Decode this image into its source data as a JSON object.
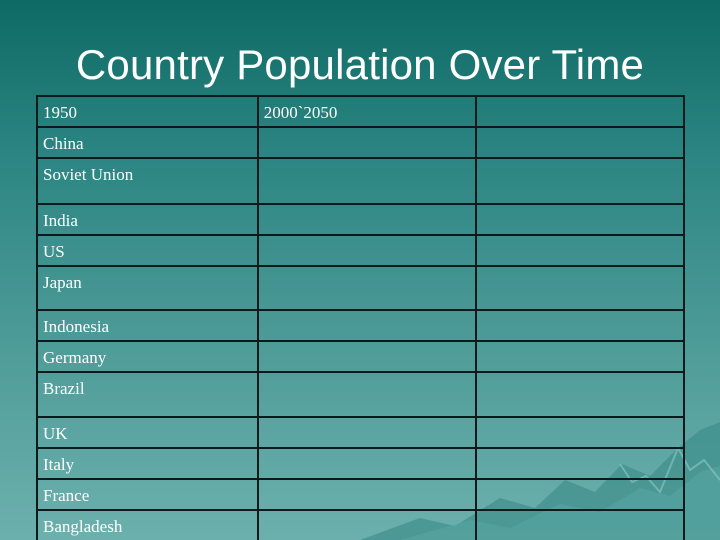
{
  "slide": {
    "title": "Country Population Over Time"
  },
  "table": {
    "headers": [
      "1950",
      "2000`2050",
      ""
    ],
    "rows": [
      {
        "country": "China",
        "y2000": "",
        "y2050": ""
      },
      {
        "country": "Soviet Union",
        "y2000": "",
        "y2050": ""
      },
      {
        "country": "India",
        "y2000": "",
        "y2050": ""
      },
      {
        "country": "US",
        "y2000": "",
        "y2050": ""
      },
      {
        "country": "Japan",
        "y2000": "",
        "y2050": ""
      },
      {
        "country": "Indonesia",
        "y2000": "",
        "y2050": ""
      },
      {
        "country": "Germany",
        "y2000": "",
        "y2050": ""
      },
      {
        "country": "Brazil",
        "y2000": "",
        "y2050": ""
      },
      {
        "country": "UK",
        "y2000": "",
        "y2050": ""
      },
      {
        "country": "Italy",
        "y2000": "",
        "y2050": ""
      },
      {
        "country": "France",
        "y2000": "",
        "y2050": ""
      },
      {
        "country": "Bangladesh",
        "y2000": "",
        "y2050": ""
      }
    ]
  },
  "theme": {
    "background_top": "#0e6a65",
    "background_bottom": "#6cb0ad",
    "text_color": "#ffffff",
    "border_color": "#0b1a1a",
    "decoration": "mountain-range-icon"
  }
}
